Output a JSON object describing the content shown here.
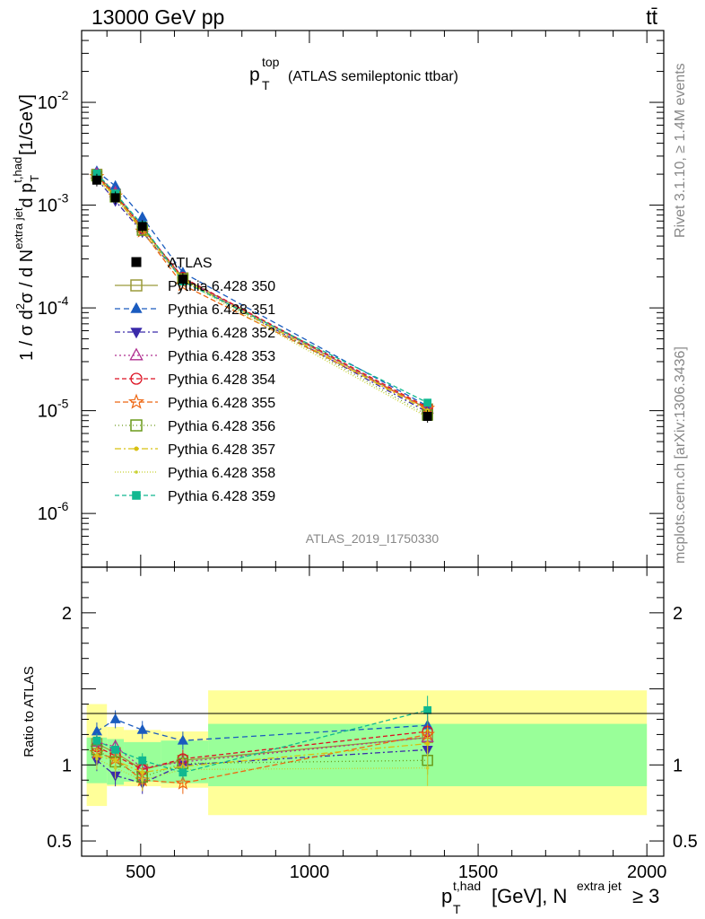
{
  "header": {
    "left": "13000 GeV pp",
    "right": "tt̄"
  },
  "side": {
    "rivet": "Rivet 3.1.10, ≥ 1.4M events",
    "mcplots": "mcplots.cern.ch [arXiv:1306.3436]"
  },
  "chart_data": {
    "type": "scatter",
    "title_main": "p",
    "title_sup": "top",
    "title_sub": "T",
    "title_rest": "(ATLAS semileptonic ttbar)",
    "analysis_id": "ATLAS_2019_I1750330",
    "ylabel_prefix": "1 / σ d",
    "ylabel_sup2": "2",
    "ylabel_mid": "σ / d N",
    "ylabel_sup_extra": "extra jet",
    "ylabel_dp": "d p",
    "ylabel_sup_thad": "t,had",
    "ylabel_sub_T": "T",
    "ylabel_unit": "[1/GeV]",
    "ratio_ylabel": "Ratio to ATLAS",
    "xlabel_p": "p",
    "xlabel_sup": "t,had",
    "xlabel_sub": "T",
    "xlabel_mid": "[GeV], N",
    "xlabel_sup2": "extra jet",
    "xlabel_end": "≥ 3",
    "xlim": [
      325,
      2050
    ],
    "ylim": [
      3e-07,
      0.05
    ],
    "ratio_ylim": [
      0.4,
      2.3
    ],
    "x_ticks": [
      "500",
      "1000",
      "1500",
      "2000"
    ],
    "y_ticks": [
      "10",
      "10",
      "10",
      "10",
      "10"
    ],
    "y_tick_exps": [
      "-6",
      "-5",
      "-4",
      "-3",
      "-2"
    ],
    "ratio_ticks": [
      "0.5",
      "1",
      "2"
    ],
    "x": [
      370,
      425,
      505,
      625,
      1350
    ],
    "bin_edges": [
      340,
      400,
      450,
      560,
      700,
      2000
    ],
    "atlas": {
      "name": "ATLAS",
      "values": [
        0.00175,
        0.00118,
        0.00062,
        0.00019,
        8.8e-06
      ]
    },
    "band_green": [
      [
        0.88,
        1.18
      ],
      [
        0.87,
        1.17
      ],
      [
        0.89,
        1.15
      ],
      [
        0.88,
        1.16
      ],
      [
        0.86,
        1.27
      ]
    ],
    "band_yellow": [
      [
        0.73,
        1.4
      ],
      [
        0.86,
        1.25
      ],
      [
        0.86,
        1.23
      ],
      [
        0.85,
        1.22
      ],
      [
        0.67,
        1.49
      ]
    ],
    "series": [
      {
        "name": "Pythia 6.428 350",
        "color": "#9a9a3a",
        "marker": "square-open",
        "dash": "",
        "ratio": [
          1.14,
          1.08,
          0.97,
          1.03,
          1.18
        ]
      },
      {
        "name": "Pythia 6.428 351",
        "color": "#1a5bbf",
        "marker": "triangle-up",
        "dash": "6,4",
        "ratio": [
          1.22,
          1.3,
          1.23,
          1.16,
          1.26
        ]
      },
      {
        "name": "Pythia 6.428 352",
        "color": "#3a2aaa",
        "marker": "triangle-down",
        "dash": "6,3,2,3",
        "ratio": [
          1.03,
          0.93,
          0.88,
          1.0,
          1.1
        ]
      },
      {
        "name": "Pythia 6.428 353",
        "color": "#b03090",
        "marker": "triangle-open",
        "dash": "2,3",
        "ratio": [
          1.15,
          1.12,
          0.98,
          1.02,
          1.18
        ]
      },
      {
        "name": "Pythia 6.428 354",
        "color": "#dd1122",
        "marker": "circle-open",
        "dash": "5,3",
        "ratio": [
          1.12,
          1.06,
          0.97,
          1.04,
          1.22
        ]
      },
      {
        "name": "Pythia 6.428 355",
        "color": "#ee6611",
        "marker": "star-open",
        "dash": "6,3",
        "ratio": [
          1.08,
          1.04,
          0.9,
          0.88,
          1.2
        ]
      },
      {
        "name": "Pythia 6.428 356",
        "color": "#6a9a1a",
        "marker": "square-open",
        "dash": "1,3",
        "ratio": [
          1.1,
          1.02,
          0.92,
          1.01,
          1.03
        ]
      },
      {
        "name": "Pythia 6.428 357",
        "color": "#d8c010",
        "marker": "dot",
        "dash": "7,3,2,3",
        "ratio": [
          1.06,
          1.03,
          0.95,
          0.99,
          1.14
        ]
      },
      {
        "name": "Pythia 6.428 358",
        "color": "#c8d030",
        "marker": "dot-small",
        "dash": "1,2",
        "ratio": [
          1.04,
          0.98,
          0.9,
          0.97,
          0.98
        ]
      },
      {
        "name": "Pythia 6.428 359",
        "color": "#10b890",
        "marker": "square",
        "dash": "5,3",
        "ratio": [
          1.16,
          1.1,
          1.03,
          0.95,
          1.36
        ]
      }
    ]
  }
}
